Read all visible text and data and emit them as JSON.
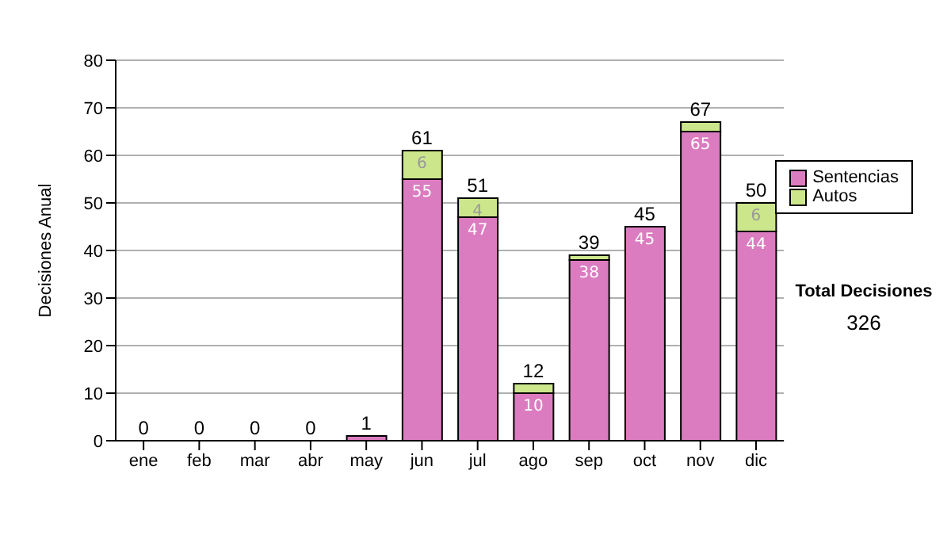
{
  "chart_data": {
    "type": "bar",
    "ylabel": "Decisiones Anual",
    "categories": [
      "ene",
      "feb",
      "mar",
      "abr",
      "may",
      "jun",
      "jul",
      "ago",
      "sep",
      "oct",
      "nov",
      "dic"
    ],
    "stacked": true,
    "series": [
      {
        "name": "Sentencias",
        "color": "#dc7cc0",
        "values": [
          0,
          0,
          0,
          0,
          1,
          55,
          47,
          10,
          38,
          45,
          65,
          44
        ],
        "value_labels": [
          null,
          null,
          null,
          null,
          null,
          "55",
          "47",
          "10",
          "38",
          "45",
          "65",
          "44"
        ]
      },
      {
        "name": "Autos",
        "color": "#cce68c",
        "values": [
          0,
          0,
          0,
          0,
          0,
          6,
          4,
          2,
          1,
          0,
          2,
          6
        ],
        "value_labels": [
          null,
          null,
          null,
          null,
          null,
          "6",
          "4",
          null,
          null,
          null,
          null,
          "6"
        ]
      }
    ],
    "totals": [
      "0",
      "0",
      "0",
      "0",
      "1",
      "61",
      "51",
      "12",
      "39",
      "45",
      "67",
      "50"
    ],
    "ylim": [
      0,
      80
    ],
    "yticks": [
      0,
      10,
      20,
      30,
      40,
      50,
      60,
      70,
      80
    ],
    "grid": "y",
    "legend": "right",
    "annotations": [
      "Total Decisiones",
      "326"
    ]
  }
}
